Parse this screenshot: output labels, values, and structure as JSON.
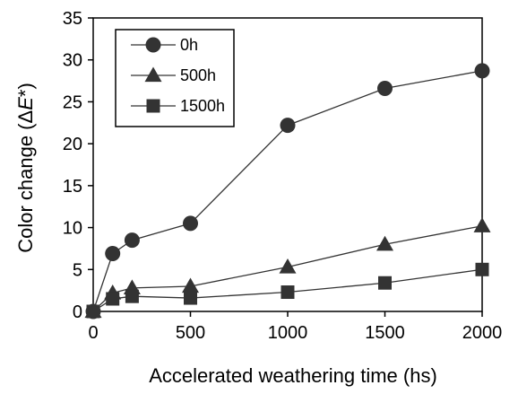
{
  "chart_data": {
    "type": "line",
    "xlabel": "Accelerated weathering time (hs)",
    "ylabel_prefix": "Color change (",
    "ylabel_delta": "Δ",
    "ylabel_var": "E",
    "ylabel_suffix": "*)",
    "xlim": [
      0,
      2000
    ],
    "ylim": [
      0,
      35
    ],
    "x_ticks": [
      "0",
      "500",
      "1000",
      "1500",
      "2000"
    ],
    "y_ticks": [
      "0",
      "5",
      "10",
      "15",
      "20",
      "25",
      "30",
      "35"
    ],
    "x_tick_values": [
      0,
      500,
      1000,
      1500,
      2000
    ],
    "y_tick_values": [
      0,
      5,
      10,
      15,
      20,
      25,
      30,
      35
    ],
    "grid": false,
    "legend_position": "top-left",
    "x": [
      0,
      100,
      200,
      500,
      1000,
      1500,
      2000
    ],
    "series": [
      {
        "name": "0h",
        "marker": "circle",
        "values": [
          0,
          6.9,
          8.5,
          10.5,
          22.2,
          26.6,
          28.7
        ]
      },
      {
        "name": "500h",
        "marker": "triangle",
        "values": [
          0,
          2.2,
          2.8,
          3.0,
          5.3,
          8.0,
          10.2
        ]
      },
      {
        "name": "1500h",
        "marker": "square",
        "values": [
          0,
          1.5,
          1.8,
          1.6,
          2.3,
          3.4,
          5.0
        ]
      }
    ]
  }
}
